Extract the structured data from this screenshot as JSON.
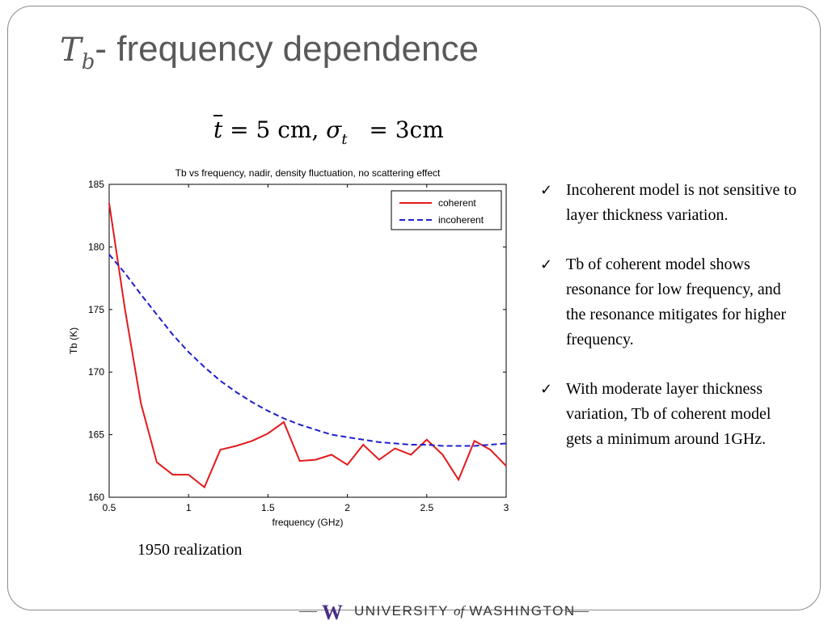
{
  "slide": {
    "title_symbol": "T",
    "title_subscript": "b",
    "title_text": "- frequency dependence",
    "formula": {
      "t_symbol": "t",
      "eq1": "= 5 cm,",
      "sigma": "σ",
      "sigma_sub": "t",
      "eq2": "= 3cm"
    },
    "realization_label": "1950 realization",
    "bullets": [
      "Incoherent model is not sensitive to layer thickness variation.",
      "Tb of coherent model shows resonance for low frequency, and the resonance mitigates for higher frequency.",
      "With moderate layer thickness variation, Tb of coherent model gets a minimum around 1GHz."
    ],
    "check_icon": "✓",
    "footer": {
      "logo_letter": "W",
      "university": "UNIVERSITY",
      "of": "of",
      "washington": "WASHINGTON",
      "brand_color": "#4b2e83"
    }
  },
  "chart_data": {
    "type": "line",
    "title": "Tb vs frequency, nadir, density fluctuation, no scattering effect",
    "xlabel": "frequency (GHz)",
    "ylabel": "Tb (K)",
    "xlim": [
      0.5,
      3
    ],
    "ylim": [
      160,
      185
    ],
    "xticks": [
      0.5,
      1,
      1.5,
      2,
      2.5,
      3
    ],
    "xtick_labels": [
      "0.5",
      "1",
      "1.5",
      "2",
      "2.5",
      "3"
    ],
    "yticks": [
      160,
      165,
      170,
      175,
      180,
      185
    ],
    "ytick_labels": [
      "160",
      "165",
      "170",
      "175",
      "180",
      "185"
    ],
    "legend_position": "top-right",
    "grid": false,
    "series": [
      {
        "name": "coherent",
        "color": "#e31a1c",
        "dash": "solid",
        "x": [
          0.5,
          0.6,
          0.7,
          0.8,
          0.9,
          1.0,
          1.1,
          1.2,
          1.3,
          1.4,
          1.5,
          1.6,
          1.7,
          1.8,
          1.9,
          2.0,
          2.1,
          2.2,
          2.3,
          2.4,
          2.5,
          2.6,
          2.7,
          2.8,
          2.9,
          3.0
        ],
        "y": [
          183.5,
          175.0,
          167.5,
          162.8,
          161.8,
          161.8,
          160.8,
          163.8,
          164.1,
          164.5,
          165.1,
          166.0,
          162.9,
          163.0,
          163.4,
          162.6,
          164.2,
          163.0,
          163.9,
          163.4,
          164.6,
          163.4,
          161.4,
          164.5,
          163.8,
          162.5
        ]
      },
      {
        "name": "incoherent",
        "color": "#1f1fd0",
        "dash": "dashed",
        "x": [
          0.5,
          0.6,
          0.7,
          0.8,
          0.9,
          1.0,
          1.1,
          1.2,
          1.3,
          1.4,
          1.5,
          1.6,
          1.7,
          1.8,
          1.9,
          2.0,
          2.1,
          2.2,
          2.3,
          2.4,
          2.5,
          2.6,
          2.7,
          2.8,
          2.9,
          3.0
        ],
        "y": [
          179.4,
          177.9,
          176.2,
          174.6,
          173.0,
          171.6,
          170.4,
          169.3,
          168.4,
          167.6,
          166.9,
          166.3,
          165.8,
          165.4,
          165.0,
          164.8,
          164.6,
          164.4,
          164.3,
          164.2,
          164.2,
          164.1,
          164.1,
          164.1,
          164.2,
          164.3
        ]
      }
    ]
  }
}
